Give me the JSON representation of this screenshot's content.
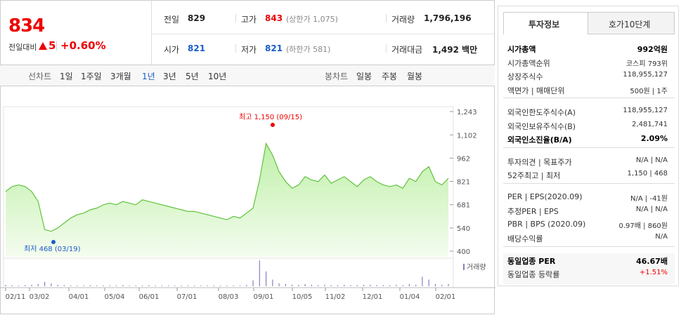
{
  "quote": {
    "price": "834",
    "change_label": "전일대비",
    "change": "5",
    "change_pct": "+0.60%",
    "cells": [
      [
        "전일",
        "829",
        ""
      ],
      [
        "고가",
        "843",
        "(상한가 1,075)"
      ],
      [
        "거래량",
        "1,796,196",
        ""
      ],
      [
        "시가",
        "821",
        ""
      ],
      [
        "저가",
        "821",
        "(하한가 581)"
      ],
      [
        "거래대금",
        "1,492 백만",
        ""
      ]
    ]
  },
  "tabs": {
    "line_label": "선차트",
    "line_items": [
      "1일",
      "1주일",
      "3개월",
      "1년",
      "3년",
      "5년",
      "10년"
    ],
    "selected": "1년",
    "candle_label": "봉차트",
    "candle_items": [
      "일봉",
      "주봉",
      "월봉"
    ]
  },
  "chart": {
    "type": "line",
    "color": "#5fc33c",
    "values": [
      760,
      790,
      800,
      790,
      760,
      700,
      530,
      520,
      540,
      570,
      600,
      620,
      630,
      650,
      660,
      680,
      690,
      680,
      700,
      690,
      680,
      710,
      700,
      690,
      680,
      670,
      660,
      650,
      640,
      640,
      630,
      620,
      610,
      600,
      590,
      610,
      600,
      630,
      660,
      830,
      1050,
      980,
      880,
      820,
      780,
      800,
      850,
      830,
      820,
      860,
      810,
      830,
      850,
      820,
      790,
      830,
      850,
      820,
      800,
      790,
      800,
      780,
      840,
      820,
      880,
      910,
      820,
      800,
      840
    ],
    "volume": [
      200000,
      150000,
      100000,
      150000,
      200000,
      300000,
      600000,
      400000,
      200000,
      150000,
      100000,
      100000,
      100000,
      150000,
      100000,
      100000,
      100000,
      100000,
      150000,
      100000,
      100000,
      100000,
      150000,
      100000,
      100000,
      100000,
      100000,
      100000,
      100000,
      100000,
      100000,
      100000,
      100000,
      100000,
      100000,
      100000,
      100000,
      200000,
      800000,
      3500000,
      2000000,
      900000,
      400000,
      300000,
      200000,
      200000,
      300000,
      200000,
      150000,
      200000,
      150000,
      150000,
      200000,
      150000,
      150000,
      200000,
      200000,
      150000,
      150000,
      150000,
      200000,
      150000,
      300000,
      200000,
      1300000,
      900000,
      300000,
      200000,
      300000
    ],
    "ylim": [
      400,
      1243
    ],
    "yticks": [
      {
        "value": 1243,
        "label": "1,243"
      },
      {
        "value": 1102,
        "label": "1,102"
      },
      962,
      821,
      681,
      540,
      400
    ],
    "volume_ylim": [
      0,
      4000000
    ],
    "volume_label": "거래량",
    "xlabels": [
      "02/11",
      "03/02",
      "04/01",
      "05/04",
      "06/01",
      "07/01",
      "08/03",
      "09/01",
      "10/05",
      "11/02",
      "12/01",
      "01/04",
      "02/01"
    ],
    "high_label": "최고 1,150 (09/15)",
    "low_label": "최저 468 (03/19)"
  },
  "info": {
    "tabs": [
      "투자정보",
      "호가10단계"
    ],
    "sections": [
      [
        [
          "시가총액",
          "992억원"
        ],
        [
          "시가총액순위",
          "코스피 793위"
        ],
        [
          "상장주식수",
          "118,955,127"
        ],
        [
          "액면가 | 매매단위",
          "500원 | 1주"
        ]
      ],
      [
        [
          "외국인한도주식수(A)",
          "118,955,127"
        ],
        [
          "외국인보유주식수(B)",
          "2,481,741"
        ],
        [
          "외국인소진율(B/A)",
          "2.09%"
        ]
      ],
      [
        [
          "투자의견 | 목표주가",
          "N/A | N/A"
        ],
        [
          "52주최고 | 최저",
          "1,150 | 468"
        ]
      ],
      [
        [
          "PER | EPS(2020.09)",
          "N/A | -41원"
        ],
        [
          "추정PER | EPS",
          "N/A | N/A"
        ],
        [
          "PBR | BPS (2020.09)",
          "0.97배 | 860원"
        ],
        [
          "배당수익률",
          "N/A"
        ]
      ],
      [
        [
          "동일업종 PER",
          "46.67배"
        ],
        [
          "동일업종 등락률",
          "+1.51%"
        ]
      ]
    ]
  }
}
